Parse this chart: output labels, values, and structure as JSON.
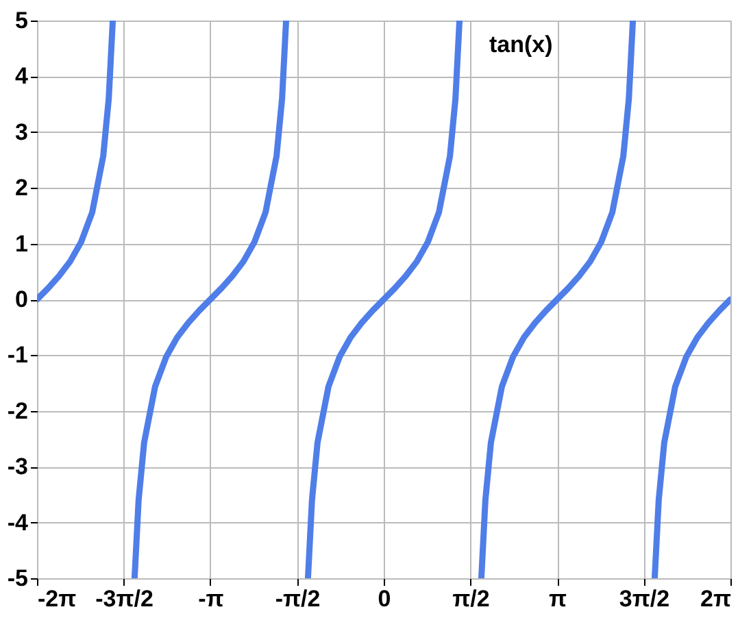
{
  "chart_data": {
    "type": "line",
    "annotations": [
      "tan(x)"
    ],
    "x": [
      -6.283,
      -6.083,
      -5.883,
      -5.683,
      -5.483,
      -5.283,
      -5.083,
      -4.983,
      -4.91,
      -4.712,
      -4.515,
      -4.442,
      -4.342,
      -4.142,
      -3.942,
      -3.742,
      -3.542,
      -3.342,
      -3.142,
      -2.942,
      -2.742,
      -2.542,
      -2.342,
      -2.142,
      -1.942,
      -1.842,
      -1.769,
      -1.571,
      -1.373,
      -1.3,
      -1.2,
      -1.0,
      -0.8,
      -0.6,
      -0.4,
      -0.2,
      0,
      0.2,
      0.4,
      0.6,
      0.8,
      1.0,
      1.2,
      1.3,
      1.373,
      1.571,
      1.769,
      1.842,
      1.942,
      2.142,
      2.342,
      2.542,
      2.742,
      2.942,
      3.142,
      3.342,
      3.542,
      3.742,
      3.942,
      4.142,
      4.342,
      4.442,
      4.515,
      4.712,
      4.91,
      4.983,
      5.083,
      5.283,
      5.483,
      5.683,
      5.883,
      6.083,
      6.283
    ],
    "series": [
      {
        "color": "#4f7ee8",
        "values": [
          0,
          0.2,
          0.42,
          0.68,
          1.03,
          1.56,
          2.57,
          3.6,
          5,
          null,
          -5,
          -3.6,
          -2.57,
          -1.56,
          -1.03,
          -0.68,
          -0.42,
          -0.2,
          0,
          0.2,
          0.42,
          0.68,
          1.03,
          1.56,
          2.57,
          3.6,
          5,
          null,
          -5,
          -3.6,
          -2.57,
          -1.56,
          -1.03,
          -0.68,
          -0.42,
          -0.2,
          0,
          0.2,
          0.42,
          0.68,
          1.03,
          1.56,
          2.57,
          3.6,
          5,
          null,
          -5,
          -3.6,
          -2.57,
          -1.56,
          -1.03,
          -0.68,
          -0.42,
          -0.2,
          0,
          0.2,
          0.42,
          0.68,
          1.03,
          1.56,
          2.57,
          3.6,
          5,
          null,
          -5,
          -3.6,
          -2.57,
          -1.56,
          -1.03,
          -0.68,
          -0.42,
          -0.2,
          0
        ]
      }
    ],
    "xlim": [
      -6.283,
      6.283
    ],
    "xticks": [
      {
        "value": -6.283,
        "label": "-2π"
      },
      {
        "value": -4.712,
        "label": "-3π/2"
      },
      {
        "value": -3.142,
        "label": "-π"
      },
      {
        "value": -1.571,
        "label": "-π/2"
      },
      0,
      {
        "value": 1.571,
        "label": "π/2"
      },
      {
        "value": 3.142,
        "label": "π"
      },
      {
        "value": 4.712,
        "label": "3π/2"
      },
      {
        "value": 6.283,
        "label": "2π"
      }
    ],
    "ylim": [
      -5,
      5
    ],
    "yticks": [
      -5,
      -4,
      -3,
      -2,
      -1,
      0,
      1,
      2,
      3,
      4,
      5
    ],
    "grid": true,
    "line_style": "solid",
    "marker": "none"
  }
}
